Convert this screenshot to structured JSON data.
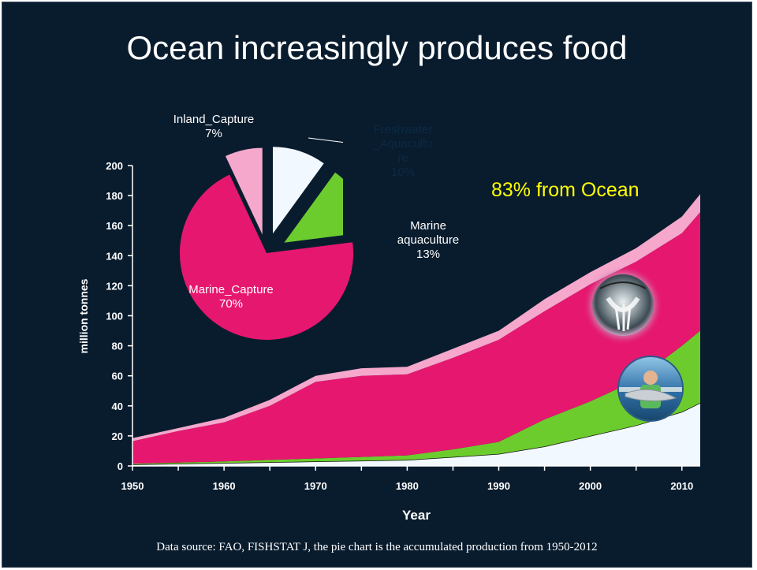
{
  "title": "Ocean increasingly produces food",
  "footer": "Data source: FAO, FISHSTAT J, the pie chart is the accumulated production from 1950-2012",
  "callout": "83% from Ocean",
  "colors": {
    "background": "#091c2e",
    "marine_capture": "#e6176f",
    "inland_capture": "#f5a8cc",
    "marine_aquaculture": "#6ccc2e",
    "freshwater_aquaculture": "#f2f8ff",
    "callout": "#ffff00"
  },
  "chart_data": [
    {
      "type": "area",
      "stacked": true,
      "xlabel": "Year",
      "ylabel": "million tonnes",
      "xlim": [
        1950,
        2012
      ],
      "ylim": [
        0,
        200
      ],
      "xticks": [
        "1950",
        "1960",
        "1970",
        "1980",
        "1990",
        "2000",
        "2010"
      ],
      "yticks": [
        "0",
        "20",
        "40",
        "60",
        "80",
        "100",
        "120",
        "140",
        "160",
        "180",
        "200"
      ],
      "x": [
        1950,
        1955,
        1960,
        1965,
        1970,
        1975,
        1980,
        1985,
        1990,
        1995,
        2000,
        2005,
        2010,
        2012
      ],
      "series": [
        {
          "values": [
            1,
            1.5,
            2,
            2.5,
            3,
            3.5,
            4,
            6,
            8,
            13,
            20,
            27,
            36,
            42
          ]
        },
        {
          "values": [
            0.5,
            0.7,
            1,
            1.5,
            2,
            2.5,
            3,
            5,
            8,
            18,
            23,
            30,
            44,
            48
          ]
        },
        {
          "values": [
            15,
            21,
            26,
            36,
            51,
            54,
            54,
            61,
            68,
            72,
            78,
            79,
            75,
            79
          ]
        },
        {
          "values": [
            2,
            2,
            3,
            4,
            4,
            5,
            5,
            6,
            6,
            8,
            8,
            9,
            11,
            12
          ]
        }
      ]
    },
    {
      "type": "pie",
      "exploded": true,
      "labels": [
        "Inland_Capture",
        "Freshwater_Aquaculture",
        "Marine aquaculture",
        "Marine_Capture"
      ],
      "values": [
        7,
        10,
        13,
        70
      ],
      "label_texts": [
        {
          "name": "Inland_Capture",
          "pct": "7%"
        },
        {
          "name": "Freshwater",
          "name2": "_Aquacultu",
          "name3": "re",
          "pct": "10%"
        },
        {
          "name": "Marine",
          "name2": "aquaculture",
          "pct": "13%"
        },
        {
          "name": "Marine_Capture",
          "pct": "70%"
        }
      ]
    }
  ]
}
